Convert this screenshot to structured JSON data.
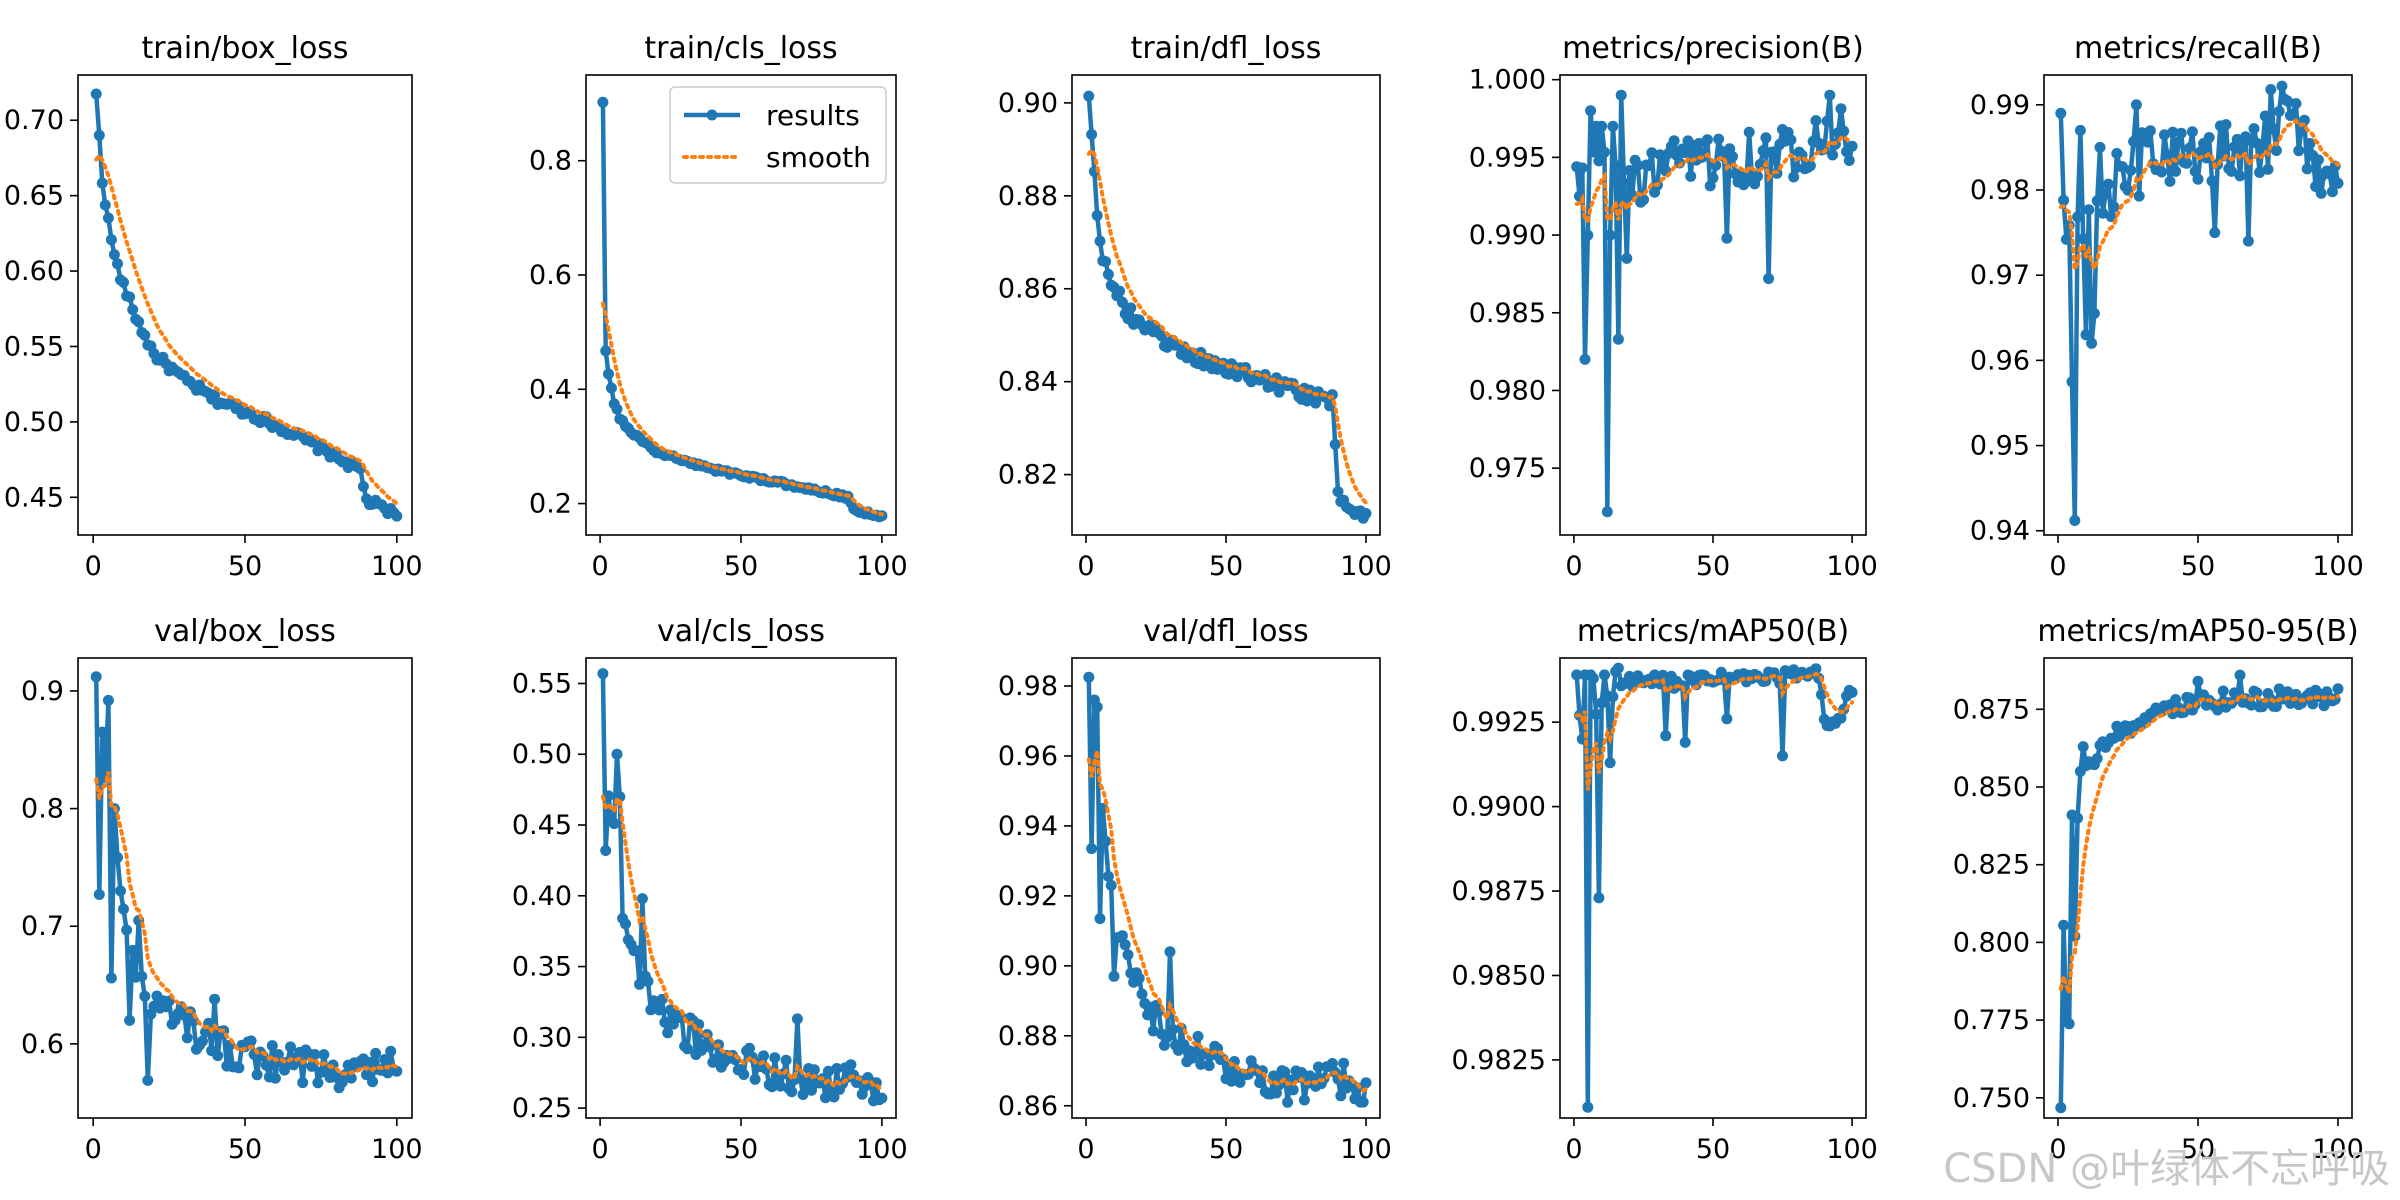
{
  "figure": {
    "watermark": "CSDN @叶绿体不忘呼吸"
  },
  "legend": {
    "results_label": "results",
    "smooth_label": "smooth",
    "placement": "top-right of train/cls_loss"
  },
  "colors": {
    "results": "#1f77b4",
    "smooth": "#ff7f0e",
    "axes": "#000000",
    "background": "#ffffff"
  },
  "chart_data": [
    {
      "type": "line",
      "title": "train/box_loss",
      "xlim": [
        -5,
        105
      ],
      "ylim": [
        0.425,
        0.73
      ],
      "xticks": [
        0,
        50,
        100
      ],
      "yticks": [
        0.45,
        0.5,
        0.55,
        0.6,
        0.65,
        0.7
      ],
      "ytick_labels": [
        "0.45",
        "0.50",
        "0.55",
        "0.60",
        "0.65",
        "0.70"
      ],
      "legend": false,
      "grid": false,
      "anchors_x": [
        1,
        2,
        3,
        5,
        7,
        10,
        15,
        20,
        30,
        40,
        50,
        60,
        70,
        80,
        88,
        90,
        95,
        100
      ],
      "anchors_y": [
        0.716,
        0.69,
        0.66,
        0.633,
        0.61,
        0.59,
        0.565,
        0.545,
        0.528,
        0.515,
        0.507,
        0.498,
        0.488,
        0.477,
        0.468,
        0.448,
        0.443,
        0.438
      ],
      "noise": 0.003,
      "spikes": [],
      "smooth_lag": 6,
      "smooth_start": 0.674
    },
    {
      "type": "line",
      "title": "train/cls_loss",
      "xlim": [
        -5,
        105
      ],
      "ylim": [
        0.145,
        0.95
      ],
      "xticks": [
        0,
        50,
        100
      ],
      "yticks": [
        0.2,
        0.4,
        0.6,
        0.8
      ],
      "ytick_labels": [
        "0.2",
        "0.4",
        "0.6",
        "0.8"
      ],
      "legend": true,
      "grid": false,
      "anchors_x": [
        1,
        2,
        3,
        4,
        5,
        7,
        10,
        15,
        20,
        30,
        40,
        50,
        60,
        70,
        80,
        88,
        90,
        95,
        100
      ],
      "anchors_y": [
        0.905,
        0.47,
        0.425,
        0.4,
        0.375,
        0.35,
        0.33,
        0.31,
        0.29,
        0.275,
        0.26,
        0.25,
        0.24,
        0.23,
        0.22,
        0.21,
        0.19,
        0.183,
        0.178
      ],
      "noise": 0.003,
      "spikes": [],
      "smooth_lag": 4,
      "smooth_start": 0.55
    },
    {
      "type": "line",
      "title": "train/dfl_loss",
      "xlim": [
        -5,
        105
      ],
      "ylim": [
        0.807,
        0.906
      ],
      "xticks": [
        0,
        50,
        100
      ],
      "yticks": [
        0.82,
        0.84,
        0.86,
        0.88,
        0.9
      ],
      "ytick_labels": [
        "0.82",
        "0.84",
        "0.86",
        "0.88",
        "0.90"
      ],
      "legend": false,
      "grid": false,
      "anchors_x": [
        1,
        2,
        3,
        4,
        5,
        7,
        10,
        15,
        20,
        30,
        40,
        50,
        60,
        70,
        80,
        88,
        90,
        95,
        100
      ],
      "anchors_y": [
        0.902,
        0.893,
        0.885,
        0.877,
        0.87,
        0.865,
        0.86,
        0.855,
        0.852,
        0.848,
        0.845,
        0.843,
        0.841,
        0.839,
        0.837,
        0.836,
        0.815,
        0.813,
        0.811
      ],
      "noise": 0.0015,
      "spikes": [],
      "smooth_lag": 5,
      "smooth_start": 0.889
    },
    {
      "type": "line",
      "title": "metrics/precision(B)",
      "xlim": [
        -5,
        105
      ],
      "ylim": [
        0.9707,
        1.0003
      ],
      "xticks": [
        0,
        50,
        100
      ],
      "yticks": [
        0.975,
        0.98,
        0.985,
        0.99,
        0.995,
        1.0
      ],
      "ytick_labels": [
        "0.975",
        "0.980",
        "0.985",
        "0.990",
        "0.995",
        "1.000"
      ],
      "legend": false,
      "grid": false,
      "anchors_x": [
        1,
        10,
        20,
        30,
        40,
        50,
        60,
        70,
        80,
        90,
        100
      ],
      "anchors_y": [
        0.994,
        0.994,
        0.993,
        0.994,
        0.9945,
        0.995,
        0.995,
        0.995,
        0.9955,
        0.997,
        0.996
      ],
      "noise": 0.0018,
      "spikes": [
        [
          2,
          0.9925
        ],
        [
          4,
          0.982
        ],
        [
          5,
          0.99
        ],
        [
          6,
          0.998
        ],
        [
          8,
          0.997
        ],
        [
          10,
          0.997
        ],
        [
          12,
          0.9722
        ],
        [
          13,
          0.99
        ],
        [
          14,
          0.997
        ],
        [
          16,
          0.9833
        ],
        [
          17,
          0.999
        ],
        [
          19,
          0.9885
        ],
        [
          55,
          0.9898
        ],
        [
          70,
          0.9872
        ],
        [
          92,
          0.999
        ]
      ],
      "smooth_lag": 8,
      "smooth_start": 0.992
    },
    {
      "type": "line",
      "title": "metrics/recall(B)",
      "xlim": [
        -5,
        105
      ],
      "ylim": [
        0.9395,
        0.9935
      ],
      "xticks": [
        0,
        50,
        100
      ],
      "yticks": [
        0.94,
        0.95,
        0.96,
        0.97,
        0.98,
        0.99
      ],
      "ytick_labels": [
        "0.94",
        "0.95",
        "0.96",
        "0.97",
        "0.98",
        "0.99"
      ],
      "legend": false,
      "grid": false,
      "anchors_x": [
        1,
        10,
        20,
        30,
        40,
        50,
        60,
        70,
        80,
        88,
        90,
        95,
        100
      ],
      "anchors_y": [
        0.978,
        0.976,
        0.98,
        0.983,
        0.984,
        0.985,
        0.985,
        0.985,
        0.987,
        0.987,
        0.982,
        0.981,
        0.983
      ],
      "noise": 0.004,
      "spikes": [
        [
          1,
          0.989
        ],
        [
          3,
          0.9742
        ],
        [
          5,
          0.9575
        ],
        [
          6,
          0.9412
        ],
        [
          8,
          0.987
        ],
        [
          10,
          0.963
        ],
        [
          12,
          0.962
        ],
        [
          13,
          0.9655
        ],
        [
          15,
          0.985
        ],
        [
          28,
          0.99
        ],
        [
          56,
          0.975
        ],
        [
          68,
          0.974
        ],
        [
          76,
          0.9918
        ],
        [
          80,
          0.9922
        ]
      ],
      "smooth_lag": 8,
      "smooth_start": 0.978
    },
    {
      "type": "line",
      "title": "val/box_loss",
      "xlim": [
        -5,
        105
      ],
      "ylim": [
        0.537,
        0.928
      ],
      "xticks": [
        0,
        50,
        100
      ],
      "yticks": [
        0.6,
        0.7,
        0.8,
        0.9
      ],
      "ytick_labels": [
        "0.6",
        "0.7",
        "0.8",
        "0.9"
      ],
      "legend": false,
      "grid": false,
      "anchors_x": [
        1,
        5,
        10,
        15,
        20,
        25,
        30,
        40,
        50,
        60,
        70,
        80,
        90,
        100
      ],
      "anchors_y": [
        0.85,
        0.82,
        0.72,
        0.65,
        0.63,
        0.625,
        0.615,
        0.6,
        0.59,
        0.585,
        0.58,
        0.578,
        0.585,
        0.576
      ],
      "noise": 0.016,
      "spikes": [
        [
          1,
          0.912
        ],
        [
          2,
          0.727
        ],
        [
          3,
          0.865
        ],
        [
          5,
          0.892
        ],
        [
          6,
          0.656
        ],
        [
          7,
          0.8
        ],
        [
          9,
          0.73
        ],
        [
          12,
          0.62
        ],
        [
          15,
          0.705
        ],
        [
          18,
          0.569
        ],
        [
          40,
          0.638
        ]
      ],
      "smooth_lag": 6,
      "smooth_start": 0.825
    },
    {
      "type": "line",
      "title": "val/cls_loss",
      "xlim": [
        -5,
        105
      ],
      "ylim": [
        0.243,
        0.568
      ],
      "xticks": [
        0,
        50,
        100
      ],
      "yticks": [
        0.25,
        0.3,
        0.35,
        0.4,
        0.45,
        0.5,
        0.55
      ],
      "ytick_labels": [
        "0.25",
        "0.30",
        "0.35",
        "0.40",
        "0.45",
        "0.50",
        "0.55"
      ],
      "legend": false,
      "grid": false,
      "anchors_x": [
        1,
        5,
        8,
        10,
        15,
        20,
        30,
        40,
        50,
        60,
        70,
        80,
        90,
        100
      ],
      "anchors_y": [
        0.48,
        0.45,
        0.4,
        0.37,
        0.34,
        0.32,
        0.305,
        0.29,
        0.282,
        0.277,
        0.272,
        0.268,
        0.272,
        0.265
      ],
      "noise": 0.012,
      "spikes": [
        [
          1,
          0.557
        ],
        [
          2,
          0.432
        ],
        [
          6,
          0.5
        ],
        [
          7,
          0.47
        ],
        [
          8,
          0.384
        ],
        [
          15,
          0.398
        ],
        [
          70,
          0.313
        ]
      ],
      "smooth_lag": 5,
      "smooth_start": 0.47
    },
    {
      "type": "line",
      "title": "val/dfl_loss",
      "xlim": [
        -5,
        105
      ],
      "ylim": [
        0.8565,
        0.988
      ],
      "xticks": [
        0,
        50,
        100
      ],
      "yticks": [
        0.86,
        0.88,
        0.9,
        0.92,
        0.94,
        0.96,
        0.98
      ],
      "ytick_labels": [
        "0.86",
        "0.88",
        "0.90",
        "0.92",
        "0.94",
        "0.96",
        "0.98"
      ],
      "legend": false,
      "grid": false,
      "anchors_x": [
        1,
        5,
        10,
        15,
        20,
        30,
        40,
        50,
        60,
        70,
        80,
        90,
        100
      ],
      "anchors_y": [
        0.96,
        0.945,
        0.91,
        0.9,
        0.89,
        0.88,
        0.875,
        0.872,
        0.869,
        0.867,
        0.866,
        0.868,
        0.865
      ],
      "noise": 0.005,
      "spikes": [
        [
          1,
          0.9825
        ],
        [
          2,
          0.9335
        ],
        [
          3,
          0.976
        ],
        [
          4,
          0.974
        ],
        [
          5,
          0.9135
        ],
        [
          6,
          0.945
        ],
        [
          9,
          0.923
        ],
        [
          10,
          0.897
        ],
        [
          14,
          0.906
        ],
        [
          30,
          0.904
        ],
        [
          72,
          0.861
        ]
      ],
      "smooth_lag": 5,
      "smooth_start": 0.959
    },
    {
      "type": "line",
      "title": "metrics/mAP50(B)",
      "xlim": [
        -5,
        105
      ],
      "ylim": [
        0.98078,
        0.9944
      ],
      "xticks": [
        0,
        50,
        100
      ],
      "yticks": [
        0.9825,
        0.985,
        0.9875,
        0.99,
        0.9925
      ],
      "ytick_labels": [
        "0.9825",
        "0.9850",
        "0.9875",
        "0.9900",
        "0.9925"
      ],
      "legend": false,
      "grid": false,
      "anchors_x": [
        1,
        5,
        10,
        15,
        20,
        30,
        40,
        50,
        60,
        70,
        80,
        88,
        90,
        95,
        100
      ],
      "anchors_y": [
        0.9935,
        0.992,
        0.993,
        0.9935,
        0.9937,
        0.9937,
        0.9937,
        0.9938,
        0.9938,
        0.9938,
        0.9939,
        0.9939,
        0.9925,
        0.9925,
        0.9935
      ],
      "noise": 0.0002,
      "spikes": [
        [
          1,
          0.9939
        ],
        [
          2,
          0.9927
        ],
        [
          3,
          0.992
        ],
        [
          4,
          0.9939
        ],
        [
          5,
          0.9811
        ],
        [
          6,
          0.9939
        ],
        [
          7,
          0.9938
        ],
        [
          9,
          0.9873
        ],
        [
          11,
          0.9939
        ],
        [
          13,
          0.9913
        ],
        [
          15,
          0.994
        ],
        [
          16,
          0.9941
        ],
        [
          33,
          0.9921
        ],
        [
          40,
          0.9919
        ],
        [
          55,
          0.9926
        ],
        [
          75,
          0.9915
        ]
      ],
      "smooth_lag": 5,
      "smooth_start": 0.9927
    },
    {
      "type": "line",
      "title": "metrics/mAP50-95(B)",
      "xlim": [
        -5,
        105
      ],
      "ylim": [
        0.7435,
        0.8915
      ],
      "xticks": [
        0,
        50,
        100
      ],
      "yticks": [
        0.75,
        0.775,
        0.8,
        0.825,
        0.85,
        0.875
      ],
      "ytick_labels": [
        "0.750",
        "0.775",
        "0.800",
        "0.825",
        "0.850",
        "0.875"
      ],
      "legend": false,
      "grid": false,
      "anchors_x": [
        1,
        2,
        4,
        6,
        8,
        10,
        15,
        20,
        30,
        40,
        50,
        60,
        70,
        80,
        90,
        100
      ],
      "anchors_y": [
        0.747,
        0.785,
        0.8,
        0.82,
        0.84,
        0.855,
        0.862,
        0.866,
        0.872,
        0.875,
        0.877,
        0.878,
        0.878,
        0.879,
        0.878,
        0.88
      ],
      "noise": 0.003,
      "spikes": [
        [
          1,
          0.7468
        ],
        [
          2,
          0.8055
        ],
        [
          3,
          0.7745
        ],
        [
          4,
          0.7738
        ],
        [
          5,
          0.841
        ],
        [
          6,
          0.802
        ],
        [
          7,
          0.84
        ],
        [
          8,
          0.855
        ],
        [
          9,
          0.863
        ],
        [
          50,
          0.884
        ],
        [
          65,
          0.886
        ]
      ],
      "smooth_lag": 5,
      "smooth_start": 0.785
    }
  ]
}
